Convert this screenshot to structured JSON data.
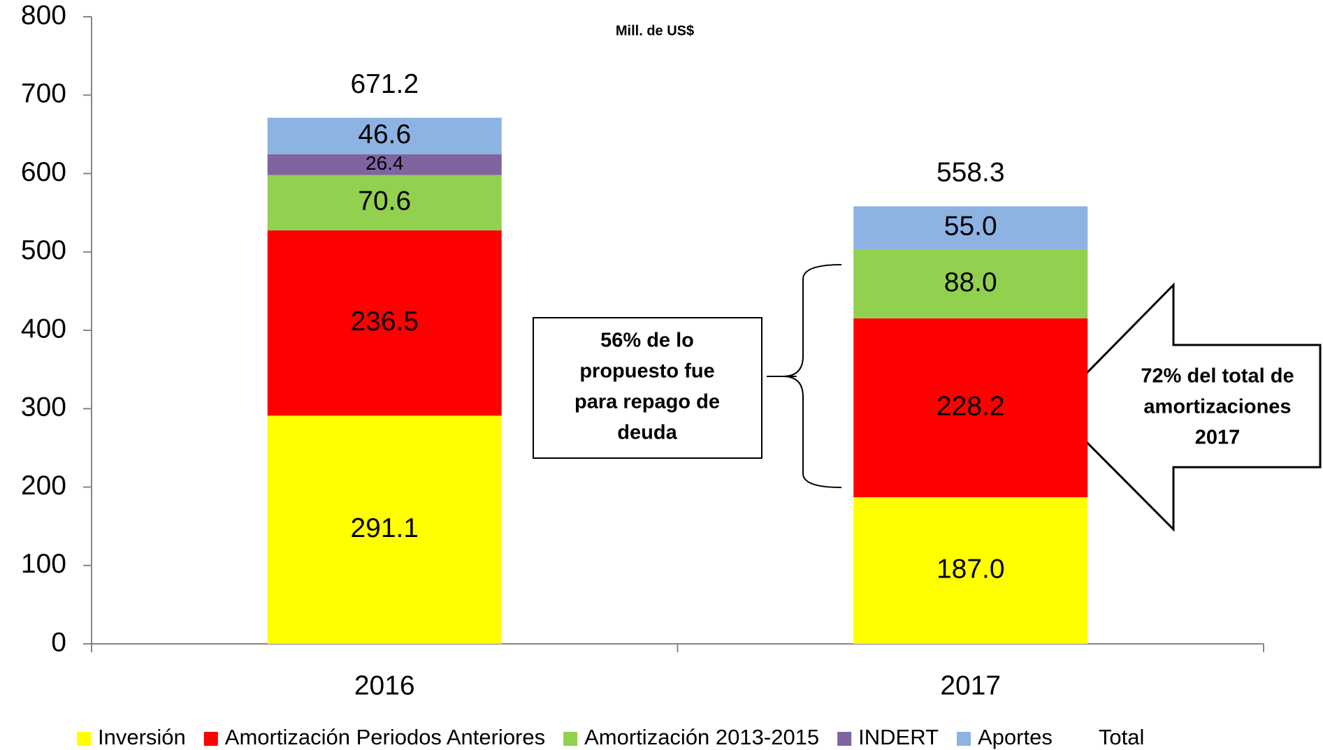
{
  "chart_data": {
    "type": "stacked_bar",
    "title": "Mill. de US$",
    "categories": [
      "2016",
      "2017"
    ],
    "series": [
      {
        "name": "Inversión",
        "color": "#ffff00",
        "values": [
          291.1,
          187.0
        ],
        "value_labels": [
          "291.1",
          "187.0"
        ]
      },
      {
        "name": "Amortización Periodos Anteriores",
        "color": "#ff0000",
        "values": [
          236.5,
          228.2
        ],
        "value_labels": [
          "236.5",
          "228.2"
        ]
      },
      {
        "name": "Amortización 2013-2015",
        "color": "#92d050",
        "values": [
          70.6,
          88.0
        ],
        "value_labels": [
          "70.6",
          "88.0"
        ]
      },
      {
        "name": "INDERT",
        "color": "#8064a2",
        "values": [
          26.4,
          null
        ],
        "value_labels": [
          "26.4",
          null
        ]
      },
      {
        "name": "Aportes",
        "color": "#8db3e2",
        "values": [
          46.6,
          55.0
        ],
        "value_labels": [
          "46.6",
          "55.0"
        ]
      },
      {
        "name": "Total",
        "values": [
          671.2,
          558.3
        ],
        "value_labels": [
          "671.2",
          "558.3"
        ]
      }
    ],
    "ylim": [
      0,
      800
    ],
    "yticks": [
      0,
      100,
      200,
      300,
      400,
      500,
      600,
      700,
      800
    ],
    "annotations": [
      {
        "text": [
          "56% de lo",
          "propuesto fue",
          "para repago de",
          "deuda"
        ]
      },
      {
        "text": [
          "72% del total de",
          "amortizaciones",
          "2017"
        ]
      }
    ],
    "legend": "bottom"
  }
}
